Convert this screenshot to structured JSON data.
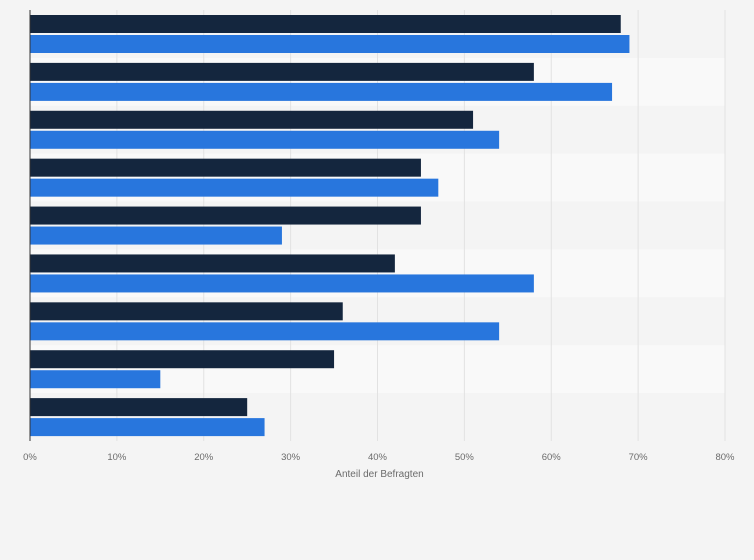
{
  "chart_data": {
    "type": "bar",
    "orientation": "horizontal",
    "categories": [
      "",
      "",
      "",
      "",
      "",
      "",
      "",
      "",
      ""
    ],
    "series": [
      {
        "values": [
          68,
          58,
          51,
          45,
          45,
          42,
          36,
          35,
          25
        ]
      },
      {
        "values": [
          69,
          67,
          54,
          47,
          29,
          58,
          54,
          15,
          27
        ]
      }
    ],
    "xlabel": "Anteil der Befragten",
    "ylabel": "",
    "xlim": [
      0,
      80
    ],
    "xticks": [
      0,
      10,
      20,
      30,
      40,
      50,
      60,
      70,
      80
    ],
    "tick_format": "{v}%",
    "grid": true,
    "legend": "none",
    "colors": {
      "series": [
        "#14263e",
        "#2876dd"
      ],
      "background": "#f4f4f4",
      "band_alt": "#f9f9f9",
      "grid": "#e2e2e2",
      "axis": "#333333"
    }
  }
}
